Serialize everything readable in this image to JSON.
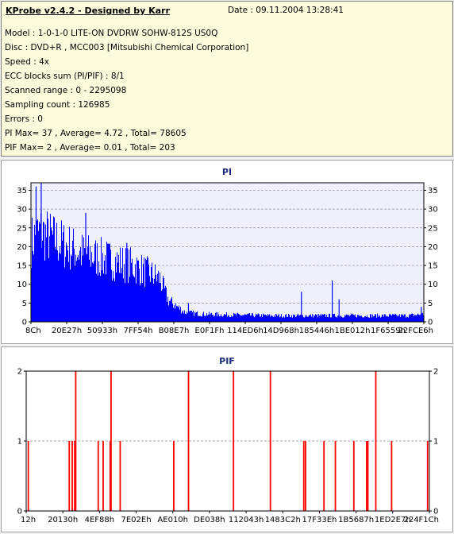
{
  "info": {
    "title": "KProbe v2.4.2 - Designed by Karr",
    "date": "Date : 09.11.2004 13:28:41",
    "model": "Model : 1-0-1-0 LITE-ON DVDRW SOHW-812S  US0Q",
    "disc": "Disc : DVD+R , MCC003 [Mitsubishi Chemical Corporation]",
    "speed": "Speed : 4x",
    "ecc": "ECC blocks sum (PI/PIF) : 8/1",
    "scanned": "Scanned range : 0 - 2295098",
    "sampling": "Sampling count : 126985",
    "errors": "Errors : 0",
    "pi_summary": "PI Max= 37 , Average= 4.72 , Total= 78605",
    "pif_summary": "PIF Max= 2 , Average= 0.01 , Total= 203"
  },
  "colors": {
    "pi_bars": "#0000ff",
    "pif_bars": "#ff0000",
    "chart_bg": "#eef0fb",
    "grid": "#8c8c8c",
    "title": "#1a2a7a"
  },
  "chart_data": [
    {
      "type": "bar",
      "title": "PI",
      "x_tick_labels": [
        "8Ch",
        "20E27h",
        "50933h",
        "7FF54h",
        "B08E7h",
        "E0F1Fh",
        "114ED6h",
        "14D968h",
        "185446h",
        "1BE012h",
        "1F6559h",
        "22FCE6h"
      ],
      "y_ticks": [
        0,
        5,
        10,
        15,
        20,
        25,
        30,
        35
      ],
      "ylim": [
        0,
        37
      ],
      "xlim": [
        0,
        2295098
      ],
      "grid": true,
      "profile": {
        "x": [
          0,
          50000,
          150000,
          300000,
          450000,
          600000,
          750000,
          800000,
          900000,
          1000000,
          1200000,
          1400000,
          1600000,
          1800000,
          2000000,
          2200000,
          2295098
        ],
        "y": [
          26,
          29,
          26,
          22,
          20,
          18,
          14,
          7,
          3,
          2.5,
          2.2,
          2,
          2,
          2,
          2,
          2,
          2.5
        ]
      },
      "spikes": [
        {
          "x": 30000,
          "y": 36
        },
        {
          "x": 60000,
          "y": 37
        },
        {
          "x": 320000,
          "y": 29
        },
        {
          "x": 560000,
          "y": 21
        },
        {
          "x": 920000,
          "y": 5
        },
        {
          "x": 1580000,
          "y": 8
        },
        {
          "x": 1760000,
          "y": 11
        },
        {
          "x": 1800000,
          "y": 6
        },
        {
          "x": 2280000,
          "y": 4
        }
      ]
    },
    {
      "type": "bar",
      "title": "PIF",
      "x_tick_labels": [
        "12h",
        "20130h",
        "4EF88h",
        "7E02Eh",
        "AE010h",
        "DE038h",
        "112043h",
        "1483C2h",
        "17F33Eh",
        "1B5687h",
        "1ED2E7h",
        "224F1Ch"
      ],
      "y_ticks": [
        0,
        1,
        2
      ],
      "ylim": [
        0,
        2
      ],
      "xlim": [
        0,
        2295098
      ],
      "grid": true,
      "points": [
        {
          "x": 12000,
          "y": 1
        },
        {
          "x": 245000,
          "y": 1
        },
        {
          "x": 262000,
          "y": 1
        },
        {
          "x": 276000,
          "y": 1
        },
        {
          "x": 282000,
          "y": 2
        },
        {
          "x": 410000,
          "y": 1
        },
        {
          "x": 438000,
          "y": 1
        },
        {
          "x": 478000,
          "y": 1
        },
        {
          "x": 483000,
          "y": 2
        },
        {
          "x": 535000,
          "y": 1
        },
        {
          "x": 840000,
          "y": 1
        },
        {
          "x": 924000,
          "y": 2
        },
        {
          "x": 1180000,
          "y": 2
        },
        {
          "x": 1390000,
          "y": 2
        },
        {
          "x": 1580000,
          "y": 1
        },
        {
          "x": 1590000,
          "y": 1
        },
        {
          "x": 1695000,
          "y": 1
        },
        {
          "x": 1760000,
          "y": 1
        },
        {
          "x": 1865000,
          "y": 1
        },
        {
          "x": 1938000,
          "y": 1
        },
        {
          "x": 1945000,
          "y": 1
        },
        {
          "x": 1990000,
          "y": 2
        },
        {
          "x": 2080000,
          "y": 1
        },
        {
          "x": 2285000,
          "y": 1
        }
      ]
    }
  ]
}
